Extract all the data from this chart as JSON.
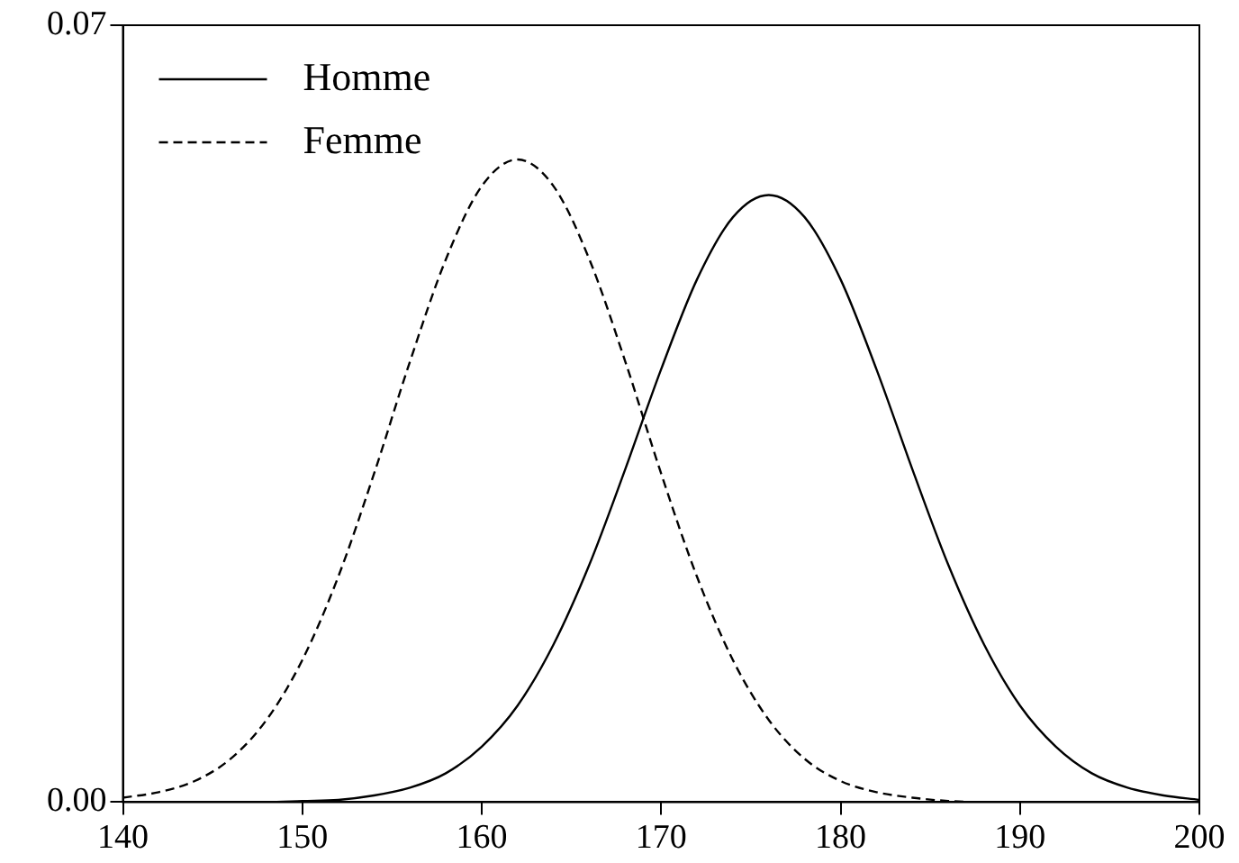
{
  "chart_data": {
    "type": "line",
    "x": [
      140,
      142,
      144,
      146,
      148,
      150,
      152,
      154,
      156,
      158,
      160,
      162,
      164,
      166,
      168,
      170,
      172,
      174,
      176,
      178,
      180,
      182,
      184,
      186,
      188,
      190,
      192,
      194,
      196,
      198,
      200
    ],
    "series": [
      {
        "name": "Homme",
        "color": "#000000",
        "line_style": "solid",
        "values": [
          0,
          0,
          0,
          0,
          0,
          0.0001,
          0.0002,
          0.0006,
          0.0013,
          0.0026,
          0.005,
          0.0087,
          0.0142,
          0.0214,
          0.03,
          0.039,
          0.0471,
          0.0527,
          0.0547,
          0.0527,
          0.0471,
          0.039,
          0.03,
          0.0214,
          0.0142,
          0.0087,
          0.005,
          0.0026,
          0.0013,
          0.0006,
          0.0002
        ]
      },
      {
        "name": "Femme",
        "color": "#000000",
        "line_style": "dashed",
        "values": [
          0.0004,
          0.0009,
          0.0019,
          0.0039,
          0.0074,
          0.0128,
          0.0203,
          0.0296,
          0.0397,
          0.0489,
          0.0555,
          0.0579,
          0.0555,
          0.0489,
          0.0397,
          0.0296,
          0.0203,
          0.0128,
          0.0074,
          0.0039,
          0.0019,
          0.0009,
          0.0004,
          0.0001,
          0,
          0,
          0,
          0,
          0,
          0,
          0
        ]
      }
    ],
    "xlim": [
      140,
      200
    ],
    "xticks": [
      140,
      150,
      160,
      170,
      180,
      190,
      200
    ],
    "ylim": [
      0,
      0.07
    ],
    "yticks": [
      {
        "value": 0,
        "label": "0.00"
      },
      {
        "value": 0.07,
        "label": "0.07"
      }
    ],
    "grid": false,
    "legend": "top left",
    "marker": "none"
  }
}
